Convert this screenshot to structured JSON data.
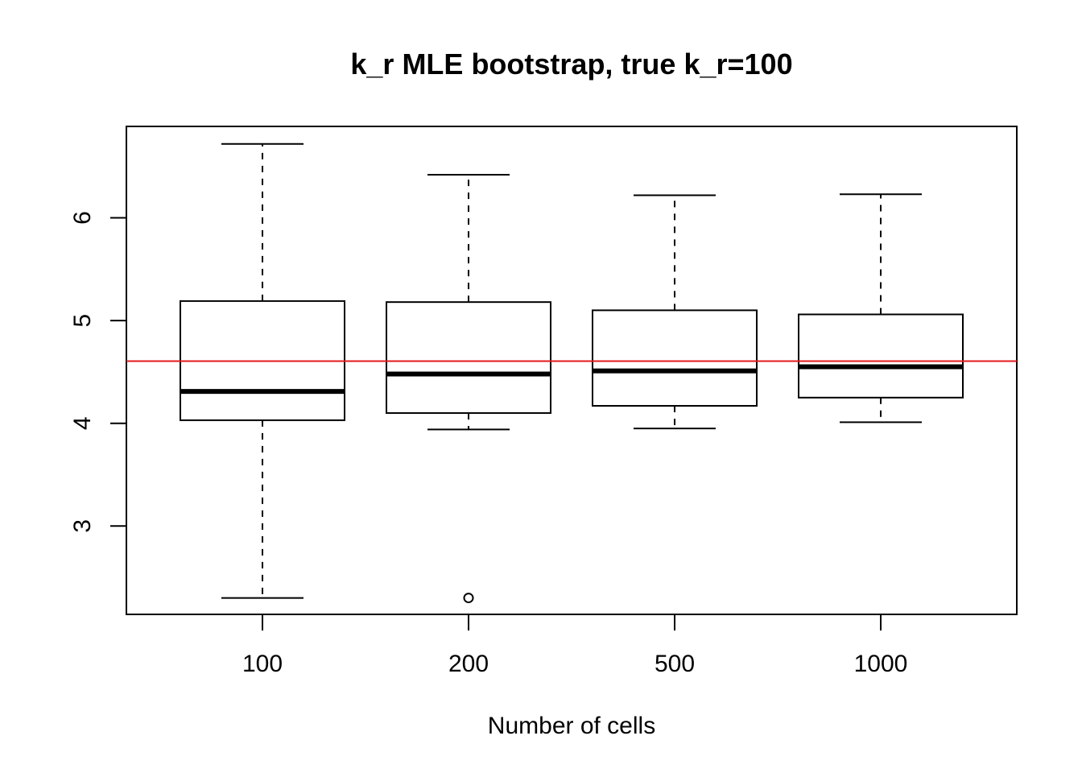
{
  "chart_data": {
    "type": "boxplot",
    "title": "k_r MLE bootstrap, true k_r=100",
    "xlabel": "Number of cells",
    "ylabel": "",
    "categories": [
      "100",
      "200",
      "500",
      "1000"
    ],
    "boxes": [
      {
        "category": "100",
        "whisker_low": 2.3,
        "q1": 4.03,
        "median": 4.31,
        "q3": 5.19,
        "whisker_high": 6.72,
        "outliers": []
      },
      {
        "category": "200",
        "whisker_low": 3.94,
        "q1": 4.1,
        "median": 4.48,
        "q3": 5.18,
        "whisker_high": 6.42,
        "outliers": [
          2.3
        ]
      },
      {
        "category": "500",
        "whisker_low": 3.95,
        "q1": 4.17,
        "median": 4.51,
        "q3": 5.1,
        "whisker_high": 6.22,
        "outliers": []
      },
      {
        "category": "1000",
        "whisker_low": 4.01,
        "q1": 4.25,
        "median": 4.55,
        "q3": 5.06,
        "whisker_high": 6.23,
        "outliers": []
      }
    ],
    "reference_line": {
      "y": 4.605,
      "color": "#e41a1c"
    },
    "yticks": [
      3,
      4,
      5,
      6
    ],
    "ytick_labels": [
      "3",
      "4",
      "5",
      "6"
    ],
    "ylim": [
      2.14,
      6.89
    ],
    "grid": false,
    "legend": "none"
  }
}
